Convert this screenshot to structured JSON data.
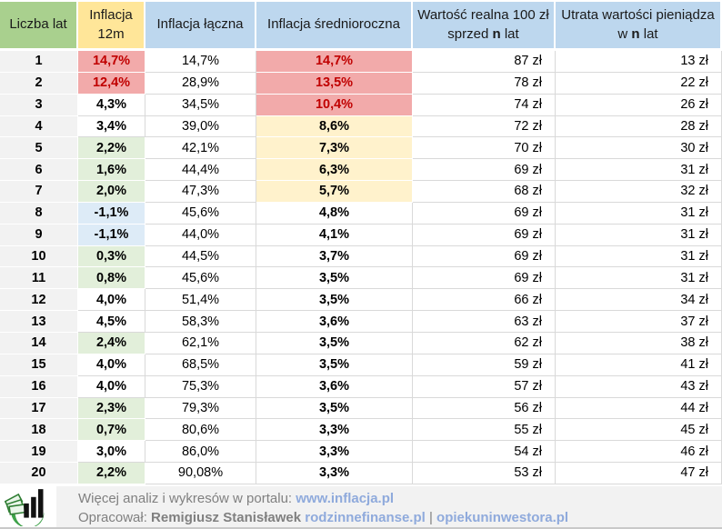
{
  "table": {
    "headers": [
      {
        "label": "Liczba lat",
        "style": "green"
      },
      {
        "label": "Inflacja 12m",
        "style": "yellow"
      },
      {
        "label": "Inflacja łączna",
        "style": "blue"
      },
      {
        "label": "Inflacja średnioroczna",
        "style": "blue"
      },
      {
        "prefix": "Wartość realna 100 zł sprzed ",
        "bold": "n",
        "suffix": " lat",
        "style": "blue"
      },
      {
        "prefix": "Utrata wartości pieniądza w ",
        "bold": "n",
        "suffix": " lat",
        "style": "blue"
      }
    ],
    "rows": [
      {
        "years": "1",
        "infl_12m": "14,7%",
        "infl_12m_style": "red",
        "total": "14,7%",
        "avg": "14,7%",
        "avg_style": "red",
        "real_value": "87 zł",
        "loss": "13 zł"
      },
      {
        "years": "2",
        "infl_12m": "12,4%",
        "infl_12m_style": "red",
        "total": "28,9%",
        "avg": "13,5%",
        "avg_style": "red",
        "real_value": "78 zł",
        "loss": "22 zł"
      },
      {
        "years": "3",
        "infl_12m": "4,3%",
        "infl_12m_style": "none",
        "total": "34,5%",
        "avg": "10,4%",
        "avg_style": "red",
        "real_value": "74 zł",
        "loss": "26 zł"
      },
      {
        "years": "4",
        "infl_12m": "3,4%",
        "infl_12m_style": "none",
        "total": "39,0%",
        "avg": "8,6%",
        "avg_style": "yellow",
        "real_value": "72 zł",
        "loss": "28 zł"
      },
      {
        "years": "5",
        "infl_12m": "2,2%",
        "infl_12m_style": "green",
        "total": "42,1%",
        "avg": "7,3%",
        "avg_style": "yellow",
        "real_value": "70 zł",
        "loss": "30 zł"
      },
      {
        "years": "6",
        "infl_12m": "1,6%",
        "infl_12m_style": "green",
        "total": "44,4%",
        "avg": "6,3%",
        "avg_style": "yellow",
        "real_value": "69 zł",
        "loss": "31 zł"
      },
      {
        "years": "7",
        "infl_12m": "2,0%",
        "infl_12m_style": "green",
        "total": "47,3%",
        "avg": "5,7%",
        "avg_style": "yellow",
        "real_value": "68 zł",
        "loss": "32 zł"
      },
      {
        "years": "8",
        "infl_12m": "-1,1%",
        "infl_12m_style": "blue",
        "total": "45,6%",
        "avg": "4,8%",
        "avg_style": "none",
        "real_value": "69 zł",
        "loss": "31 zł"
      },
      {
        "years": "9",
        "infl_12m": "-1,1%",
        "infl_12m_style": "blue",
        "total": "44,0%",
        "avg": "4,1%",
        "avg_style": "none",
        "real_value": "69 zł",
        "loss": "31 zł"
      },
      {
        "years": "10",
        "infl_12m": "0,3%",
        "infl_12m_style": "green",
        "total": "44,5%",
        "avg": "3,7%",
        "avg_style": "none",
        "real_value": "69 zł",
        "loss": "31 zł"
      },
      {
        "years": "11",
        "infl_12m": "0,8%",
        "infl_12m_style": "green",
        "total": "45,6%",
        "avg": "3,5%",
        "avg_style": "none",
        "real_value": "69 zł",
        "loss": "31 zł"
      },
      {
        "years": "12",
        "infl_12m": "4,0%",
        "infl_12m_style": "none",
        "total": "51,4%",
        "avg": "3,5%",
        "avg_style": "none",
        "real_value": "66 zł",
        "loss": "34 zł"
      },
      {
        "years": "13",
        "infl_12m": "4,5%",
        "infl_12m_style": "none",
        "total": "58,3%",
        "avg": "3,6%",
        "avg_style": "none",
        "real_value": "63 zł",
        "loss": "37 zł"
      },
      {
        "years": "14",
        "infl_12m": "2,4%",
        "infl_12m_style": "green",
        "total": "62,1%",
        "avg": "3,5%",
        "avg_style": "none",
        "real_value": "62 zł",
        "loss": "38 zł"
      },
      {
        "years": "15",
        "infl_12m": "4,0%",
        "infl_12m_style": "none",
        "total": "68,5%",
        "avg": "3,5%",
        "avg_style": "none",
        "real_value": "59 zł",
        "loss": "41 zł"
      },
      {
        "years": "16",
        "infl_12m": "4,0%",
        "infl_12m_style": "none",
        "total": "75,3%",
        "avg": "3,6%",
        "avg_style": "none",
        "real_value": "57 zł",
        "loss": "43 zł"
      },
      {
        "years": "17",
        "infl_12m": "2,3%",
        "infl_12m_style": "green",
        "total": "79,3%",
        "avg": "3,5%",
        "avg_style": "none",
        "real_value": "56 zł",
        "loss": "44 zł"
      },
      {
        "years": "18",
        "infl_12m": "0,7%",
        "infl_12m_style": "green",
        "total": "80,6%",
        "avg": "3,3%",
        "avg_style": "none",
        "real_value": "55 zł",
        "loss": "45 zł"
      },
      {
        "years": "19",
        "infl_12m": "3,0%",
        "infl_12m_style": "none",
        "total": "86,0%",
        "avg": "3,3%",
        "avg_style": "none",
        "real_value": "54 zł",
        "loss": "46 zł"
      },
      {
        "years": "20",
        "infl_12m": "2,2%",
        "infl_12m_style": "green",
        "total": "90,08%",
        "avg": "3,3%",
        "avg_style": "none",
        "real_value": "53 zł",
        "loss": "47 zł"
      }
    ]
  },
  "footer": {
    "line1_text": "Więcej analiz i wykresów w portalu:",
    "line1_link": "www.inflacja.pl",
    "line2_label": "Opracował:",
    "line2_author": "Remigiusz Stanisławek",
    "line2_link1": "rodzinnefinanse.pl",
    "line2_sep": "|",
    "line2_link2": "opiekuninwestora.pl",
    "logo_name": "chart-money-logo"
  },
  "colors": {
    "header_green": "#A9D08E",
    "header_yellow": "#FFE699",
    "header_blue": "#BDD7EE",
    "cell_gray": "#F2F2F2",
    "cell_red": "#F2AAAA",
    "cell_red_text": "#C00000",
    "cell_green": "#E2EFDA",
    "cell_blue": "#DDEBF7",
    "cell_yellow": "#FFF2CC",
    "gridline": "#D9D9D9",
    "footer_bg": "#F2F2F2",
    "footer_text": "#808080",
    "footer_link": "#8FAADC"
  }
}
